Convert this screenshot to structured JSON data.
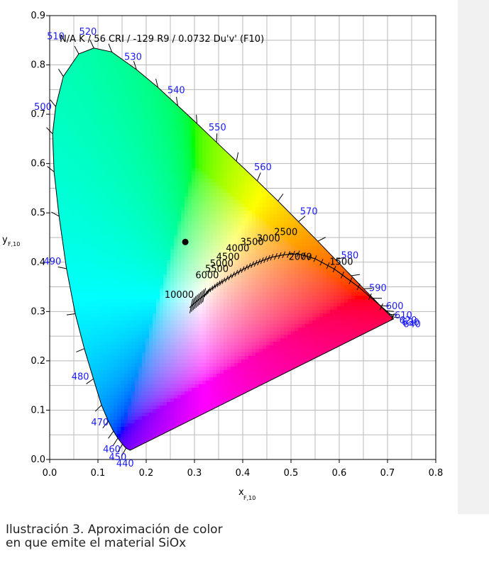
{
  "chart_data": {
    "type": "scatter",
    "title": "N/A K / 56 CRI / -129 R9 / 0.0732 Du'v' (F10)",
    "xlabel": "x",
    "xlabel_sub": "F,10",
    "ylabel": "y",
    "ylabel_sub": "F,10",
    "xlim": [
      0.0,
      0.8
    ],
    "ylim": [
      0.0,
      0.9
    ],
    "x_ticks": [
      "0.0",
      "0.1",
      "0.2",
      "0.3",
      "0.4",
      "0.5",
      "0.6",
      "0.7",
      "0.8"
    ],
    "y_ticks": [
      "0.0",
      "0.1",
      "0.2",
      "0.3",
      "0.4",
      "0.5",
      "0.6",
      "0.7",
      "0.8",
      "0.9"
    ],
    "grid": true,
    "point": {
      "x": 0.281,
      "y": 0.441
    },
    "spectral_locus": [
      [
        0.1666,
        0.0186
      ],
      [
        0.1581,
        0.0229
      ],
      [
        0.1508,
        0.0311
      ],
      [
        0.1412,
        0.0431
      ],
      [
        0.132,
        0.0573
      ],
      [
        0.1214,
        0.0776
      ],
      [
        0.1074,
        0.1103
      ],
      [
        0.0906,
        0.1635
      ],
      [
        0.0717,
        0.2247
      ],
      [
        0.053,
        0.2954
      ],
      [
        0.0349,
        0.3869
      ],
      [
        0.0194,
        0.4933
      ],
      [
        0.0091,
        0.5832
      ],
      [
        0.006,
        0.6603
      ],
      [
        0.0125,
        0.7154
      ],
      [
        0.0283,
        0.7766
      ],
      [
        0.0602,
        0.8223
      ],
      [
        0.0914,
        0.8342
      ],
      [
        0.1288,
        0.8262
      ],
      [
        0.1798,
        0.7906
      ],
      [
        0.2243,
        0.7543
      ],
      [
        0.2654,
        0.7173
      ],
      [
        0.3051,
        0.681
      ],
      [
        0.3457,
        0.6431
      ],
      [
        0.3869,
        0.605
      ],
      [
        0.43,
        0.565
      ],
      [
        0.4731,
        0.5241
      ],
      [
        0.5156,
        0.4822
      ],
      [
        0.5556,
        0.4425
      ],
      [
        0.5927,
        0.4049
      ],
      [
        0.6249,
        0.3725
      ],
      [
        0.6506,
        0.3462
      ],
      [
        0.6702,
        0.3269
      ],
      [
        0.685,
        0.3119
      ],
      [
        0.6953,
        0.3016
      ],
      [
        0.7024,
        0.2945
      ],
      [
        0.7079,
        0.2893
      ],
      [
        0.7127,
        0.285
      ]
    ],
    "wavelength_labels": [
      {
        "text": "440",
        "x": 0.17,
        "y": 0.018
      },
      {
        "text": "450",
        "x": 0.156,
        "y": 0.03
      },
      {
        "text": "460",
        "x": 0.145,
        "y": 0.045
      },
      {
        "text": "470",
        "x": 0.124,
        "y": 0.097
      },
      {
        "text": "480",
        "x": 0.089,
        "y": 0.183
      },
      {
        "text": "490",
        "x": 0.035,
        "y": 0.395
      },
      {
        "text": "500",
        "x": 0.006,
        "y": 0.692
      },
      {
        "text": "510",
        "x": 0.028,
        "y": 0.832
      },
      {
        "text": "520",
        "x": 0.092,
        "y": 0.84
      },
      {
        "text": "530",
        "x": 0.182,
        "y": 0.787
      },
      {
        "text": "540",
        "x": 0.267,
        "y": 0.719
      },
      {
        "text": "550",
        "x": 0.346,
        "y": 0.643
      },
      {
        "text": "560",
        "x": 0.43,
        "y": 0.565
      },
      {
        "text": "570",
        "x": 0.514,
        "y": 0.483
      },
      {
        "text": "580",
        "x": 0.593,
        "y": 0.405
      },
      {
        "text": "590",
        "x": 0.65,
        "y": 0.346
      },
      {
        "text": "600",
        "x": 0.685,
        "y": 0.312
      },
      {
        "text": "610",
        "x": 0.703,
        "y": 0.295
      },
      {
        "text": "620",
        "x": 0.713,
        "y": 0.285
      },
      {
        "text": "630",
        "x": 0.718,
        "y": 0.281
      },
      {
        "text": "640",
        "x": 0.721,
        "y": 0.278
      }
    ],
    "planckian_locus": [
      [
        0.7112,
        0.2898
      ],
      [
        0.64,
        0.35
      ],
      [
        0.59,
        0.386
      ],
      [
        0.55,
        0.407
      ],
      [
        0.515,
        0.417
      ],
      [
        0.485,
        0.415
      ],
      [
        0.46,
        0.41
      ],
      [
        0.44,
        0.403
      ],
      [
        0.42,
        0.395
      ],
      [
        0.4,
        0.385
      ],
      [
        0.38,
        0.374
      ],
      [
        0.36,
        0.362
      ],
      [
        0.345,
        0.353
      ],
      [
        0.33,
        0.342
      ],
      [
        0.32,
        0.333
      ],
      [
        0.31,
        0.325
      ],
      [
        0.3,
        0.317
      ],
      [
        0.29,
        0.308
      ]
    ],
    "cct_labels": [
      {
        "text": "1500",
        "x": 0.58,
        "y": 0.395
      },
      {
        "text": "2000",
        "x": 0.495,
        "y": 0.405
      },
      {
        "text": "2500",
        "x": 0.465,
        "y": 0.455
      },
      {
        "text": "3000",
        "x": 0.429,
        "y": 0.442
      },
      {
        "text": "3500",
        "x": 0.395,
        "y": 0.435
      },
      {
        "text": "4000",
        "x": 0.365,
        "y": 0.422
      },
      {
        "text": "4500",
        "x": 0.345,
        "y": 0.405
      },
      {
        "text": "5000",
        "x": 0.332,
        "y": 0.391
      },
      {
        "text": "5500",
        "x": 0.322,
        "y": 0.38
      },
      {
        "text": "6000",
        "x": 0.302,
        "y": 0.367
      },
      {
        "text": "10000",
        "x": 0.238,
        "y": 0.328
      }
    ]
  },
  "caption": {
    "line1": "Ilustración 3. Aproximación de color",
    "line2": "en que emite el material SiOx"
  }
}
